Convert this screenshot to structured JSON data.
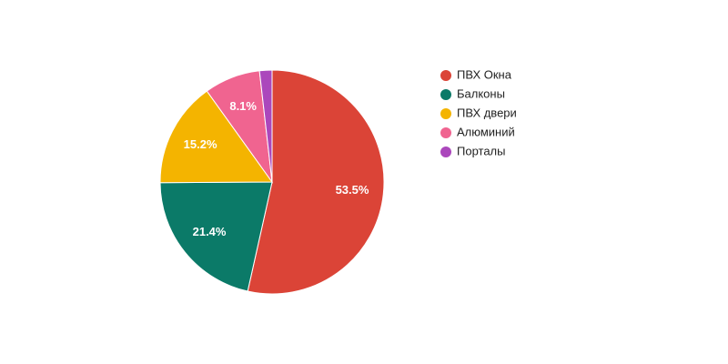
{
  "chart_data": {
    "type": "pie",
    "categories": [
      "ПВХ Окна",
      "Балконы",
      "ПВХ двери",
      "Алюминий",
      "Порталы"
    ],
    "values": [
      53.5,
      21.4,
      15.2,
      8.1,
      1.8
    ],
    "value_labels": [
      "53.5%",
      "21.4%",
      "15.2%",
      "8.1%",
      null
    ],
    "colors": [
      "#db4437",
      "#0b7a68",
      "#f4b400",
      "#f06490",
      "#ab47bc"
    ],
    "legend": "right"
  }
}
